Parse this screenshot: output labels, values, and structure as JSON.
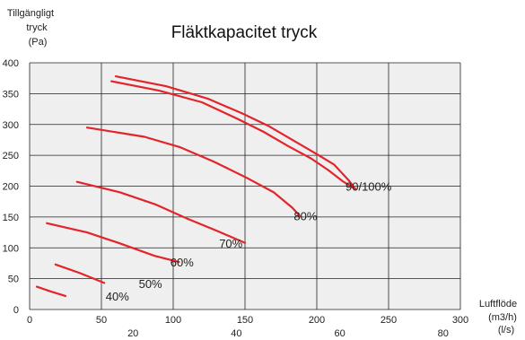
{
  "chart_data": {
    "type": "line",
    "title": "Fläktkapacitet tryck",
    "ylabel": [
      "Tillgängligt",
      "tryck",
      "(Pa)"
    ],
    "xlabel": [
      "Luftflöde",
      "(m3/h)",
      "(l/s)"
    ],
    "xlim": [
      0,
      300
    ],
    "ylim": [
      0,
      400
    ],
    "x_ticks": [
      "0",
      "50",
      "100",
      "150",
      "200",
      "250",
      "300"
    ],
    "y_ticks": [
      "0",
      "50",
      "100",
      "150",
      "200",
      "250",
      "300",
      "350",
      "400"
    ],
    "x2_ticks": [
      {
        "label": "20",
        "value": 72
      },
      {
        "label": "40",
        "value": 144
      },
      {
        "label": "60",
        "value": 216
      },
      {
        "label": "80",
        "value": 288
      }
    ],
    "grid": true,
    "line_color": "#e3242b",
    "series": [
      {
        "name": "40%",
        "label_at": [
          53,
          22
        ],
        "points": [
          [
            5,
            37
          ],
          [
            15,
            29
          ],
          [
            25,
            22
          ]
        ]
      },
      {
        "name": "50%",
        "label_at": [
          76,
          42
        ],
        "points": [
          [
            18,
            73
          ],
          [
            35,
            59
          ],
          [
            52,
            43
          ]
        ]
      },
      {
        "name": "60%",
        "label_at": [
          98,
          77
        ],
        "points": [
          [
            12,
            140
          ],
          [
            40,
            125
          ],
          [
            62,
            108
          ],
          [
            87,
            87
          ],
          [
            104,
            77
          ]
        ]
      },
      {
        "name": "70%",
        "label_at": [
          132,
          108
        ],
        "points": [
          [
            33,
            207
          ],
          [
            63,
            190
          ],
          [
            88,
            170
          ],
          [
            110,
            147
          ],
          [
            130,
            128
          ],
          [
            150,
            108
          ]
        ]
      },
      {
        "name": "80%",
        "label_at": [
          184,
          152
        ],
        "points": [
          [
            40,
            295
          ],
          [
            80,
            280
          ],
          [
            105,
            263
          ],
          [
            128,
            240
          ],
          [
            150,
            215
          ],
          [
            170,
            190
          ],
          [
            183,
            165
          ],
          [
            188,
            152
          ]
        ]
      },
      {
        "name": "90/100%",
        "label_at": [
          220,
          200
        ],
        "points": [
          [
            60,
            378
          ],
          [
            95,
            362
          ],
          [
            124,
            342
          ],
          [
            148,
            318
          ],
          [
            166,
            298
          ],
          [
            183,
            275
          ],
          [
            200,
            252
          ],
          [
            212,
            235
          ],
          [
            222,
            210
          ],
          [
            227,
            195
          ]
        ]
      },
      {
        "name": "",
        "points": [
          [
            57,
            370
          ],
          [
            90,
            355
          ],
          [
            120,
            336
          ],
          [
            144,
            310
          ],
          [
            163,
            288
          ],
          [
            180,
            265
          ],
          [
            196,
            245
          ],
          [
            208,
            226
          ],
          [
            218,
            208
          ],
          [
            225,
            198
          ]
        ]
      }
    ]
  }
}
